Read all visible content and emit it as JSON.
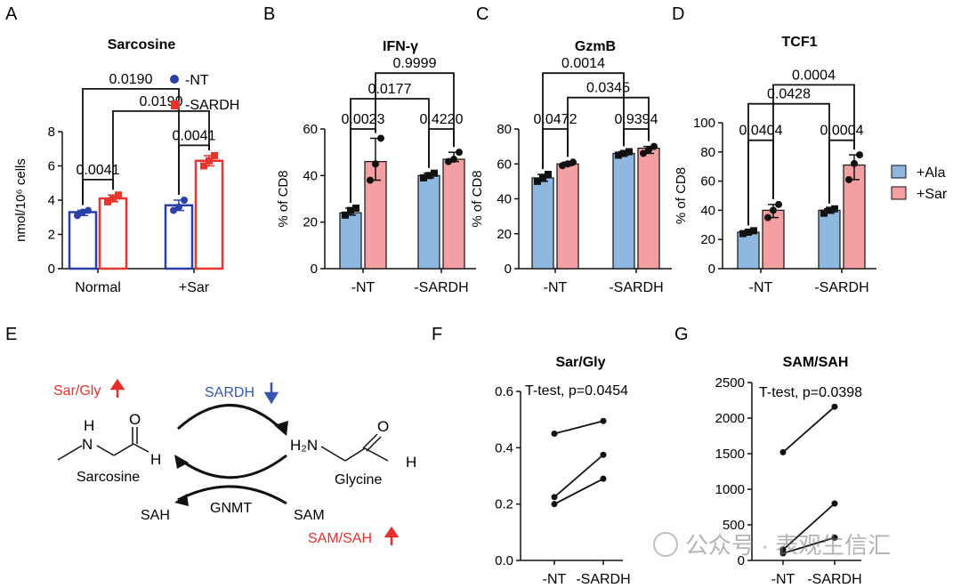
{
  "colors": {
    "blue": "#2b3fa8",
    "red": "#e8362c",
    "lightblue": "#8fb8e0",
    "pink": "#f4a0a3",
    "axis": "#111111",
    "scheme_red": "#e4302a",
    "scheme_blue": "#3556b0"
  },
  "watermark": "公众号 · 表观生信汇",
  "chart_data": [
    {
      "panel": "A",
      "type": "bar",
      "title": "Sarcosine",
      "ylabel": "nmol/10⁶ cells",
      "ylim": [
        0,
        8
      ],
      "yticks": [
        "0",
        "2",
        "4",
        "6",
        "8"
      ],
      "categories": [
        "Normal",
        "+Sar"
      ],
      "series": [
        {
          "name": "-NT",
          "values": [
            3.3,
            3.7
          ],
          "points": [
            [
              3.1,
              3.3,
              3.4
            ],
            [
              3.4,
              3.6,
              4.0
            ]
          ]
        },
        {
          "name": "-SARDH",
          "values": [
            4.1,
            6.3
          ],
          "points": [
            [
              3.9,
              4.1,
              4.3
            ],
            [
              6.0,
              6.3,
              6.6
            ]
          ]
        }
      ],
      "legend": "top-right",
      "annotations": [
        {
          "text": "0.0041",
          "between": [
            "Normal:-NT",
            "Normal:-SARDH"
          ],
          "level": 5.2
        },
        {
          "text": "0.0041",
          "between": [
            "+Sar:-NT",
            "+Sar:-SARDH"
          ],
          "level": 7.2
        },
        {
          "text": "0.0190",
          "between": [
            "Normal:-SARDH",
            "+Sar:-SARDH"
          ],
          "level": 9.2
        },
        {
          "text": "0.0190",
          "between": [
            "Normal:-NT",
            "+Sar:-NT"
          ],
          "level": 10.5
        }
      ]
    },
    {
      "panel": "B",
      "type": "bar",
      "title": "IFN-γ",
      "ylabel": "% of CD8",
      "ylim": [
        0,
        60
      ],
      "yticks": [
        "0",
        "20",
        "40",
        "60"
      ],
      "categories": [
        "-NT",
        "-SARDH"
      ],
      "series": [
        {
          "name": "+Ala",
          "values": [
            24,
            40
          ],
          "points": [
            [
              23,
              25,
              26
            ],
            [
              39,
              40,
              41
            ]
          ]
        },
        {
          "name": "+Sar",
          "values": [
            46,
            47
          ],
          "points": [
            [
              38,
              45,
              56
            ],
            [
              46,
              47,
              50
            ]
          ]
        }
      ],
      "annotations": [
        {
          "text": "0.0023",
          "between": [
            "-NT:+Ala",
            "-NT:+Sar"
          ],
          "level": 60
        },
        {
          "text": "0.4220",
          "between": [
            "-SARDH:+Ala",
            "-SARDH:+Sar"
          ],
          "level": 60
        },
        {
          "text": "0.0177",
          "between": [
            "-NT:+Ala",
            "-SARDH:+Ala"
          ],
          "level": 73
        },
        {
          "text": "0.9999",
          "between": [
            "-NT:+Sar",
            "-SARDH:+Sar"
          ],
          "level": 84
        }
      ]
    },
    {
      "panel": "C",
      "type": "bar",
      "title": "GzmB",
      "ylabel": "% of CD8",
      "ylim": [
        0,
        80
      ],
      "yticks": [
        "0",
        "20",
        "40",
        "60",
        "80"
      ],
      "categories": [
        "-NT",
        "-SARDH"
      ],
      "series": [
        {
          "name": "+Ala",
          "values": [
            52,
            66
          ],
          "points": [
            [
              50,
              52,
              54
            ],
            [
              65,
              66,
              67
            ]
          ]
        },
        {
          "name": "+Sar",
          "values": [
            60,
            69
          ],
          "points": [
            [
              59,
              60,
              61
            ],
            [
              66,
              68,
              70
            ]
          ]
        }
      ],
      "annotations": [
        {
          "text": "0.0472",
          "between": [
            "-NT:+Ala",
            "-NT:+Sar"
          ],
          "level": 80
        },
        {
          "text": "0.9394",
          "between": [
            "-SARDH:+Ala",
            "-SARDH:+Sar"
          ],
          "level": 80
        },
        {
          "text": "0.0345",
          "between": [
            "-NT:+Sar",
            "-SARDH:+Sar"
          ],
          "level": 98
        },
        {
          "text": "0.0014",
          "between": [
            "-NT:+Ala",
            "-SARDH:+Ala"
          ],
          "level": 112
        }
      ]
    },
    {
      "panel": "D",
      "type": "bar",
      "title": "TCF1",
      "ylabel": "% of CD8",
      "ylim": [
        0,
        100
      ],
      "yticks": [
        "0",
        "20",
        "40",
        "60",
        "80",
        "100"
      ],
      "categories": [
        "-NT",
        "-SARDH"
      ],
      "series": [
        {
          "name": "+Ala",
          "values": [
            25,
            40
          ],
          "points": [
            [
              24,
              25,
              26
            ],
            [
              38,
              40,
              41
            ]
          ]
        },
        {
          "name": "+Sar",
          "values": [
            40,
            71
          ],
          "points": [
            [
              35,
              40,
              44
            ],
            [
              61,
              72,
              78
            ]
          ]
        }
      ],
      "legend": "right",
      "annotations": [
        {
          "text": "0.0404",
          "between": [
            "-NT:+Ala",
            "-NT:+Sar"
          ],
          "level": 88
        },
        {
          "text": "0.0004",
          "between": [
            "-SARDH:+Ala",
            "-SARDH:+Sar"
          ],
          "level": 88
        },
        {
          "text": "0.0428",
          "between": [
            "-NT:+Ala",
            "-SARDH:+Ala"
          ],
          "level": 113
        },
        {
          "text": "0.0004",
          "between": [
            "-NT:+Sar",
            "-SARDH:+Sar"
          ],
          "level": 126
        }
      ]
    },
    {
      "panel": "F",
      "type": "line",
      "title": "Sar/Gly",
      "ylim": [
        0,
        0.6
      ],
      "yticks": [
        "0.0",
        "0.2",
        "0.4",
        "0.6"
      ],
      "categories": [
        "-NT",
        "-SARDH"
      ],
      "series": [
        {
          "values": [
            0.45,
            0.495
          ]
        },
        {
          "values": [
            0.225,
            0.375
          ]
        },
        {
          "values": [
            0.2,
            0.29
          ]
        }
      ],
      "annotation": "T-test, p=0.0454"
    },
    {
      "panel": "G",
      "type": "line",
      "title": "SAM/SAH",
      "ylim": [
        0,
        2500
      ],
      "yticks": [
        "0",
        "500",
        "1000",
        "1500",
        "2000",
        "2500"
      ],
      "categories": [
        "-NT",
        "-SARDH"
      ],
      "series": [
        {
          "values": [
            1520,
            2160
          ]
        },
        {
          "values": [
            150,
            800
          ]
        },
        {
          "values": [
            100,
            320
          ]
        }
      ],
      "annotation": "T-test, p=0.0398"
    }
  ],
  "scheme": {
    "panel": "E",
    "sar_gly_label": "Sar/Gly",
    "sardh_label": "SARDH",
    "gnmt_label": "GNMT",
    "sam_label": "SAM",
    "sah_label": "SAH",
    "sam_sah_label": "SAM/SAH",
    "sarcosine_label": "Sarcosine",
    "glycine_label": "Glycine",
    "n_atom": "N",
    "h_atom": "H",
    "o_atom": "O",
    "h2n_label": "H₂N"
  },
  "legend_right": {
    "items": [
      "+Ala",
      "+Sar"
    ]
  },
  "legend_A": {
    "items": [
      "-NT",
      "-SARDH"
    ]
  }
}
